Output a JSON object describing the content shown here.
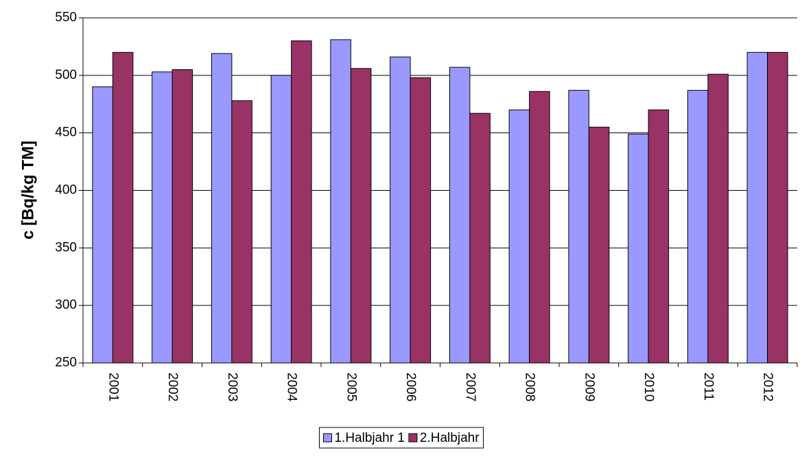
{
  "chart_data": {
    "type": "bar",
    "y_label": "c [Bq/kg TM]",
    "categories": [
      "2001",
      "2002",
      "2003",
      "2004",
      "2005",
      "2006",
      "2007",
      "2008",
      "2009",
      "2010",
      "2011",
      "2012"
    ],
    "series": [
      {
        "name": "1.Halbjahr 1",
        "color": "#9999ff",
        "values": [
          490,
          503,
          519,
          500,
          531,
          516,
          507,
          470,
          487,
          449,
          487,
          520
        ]
      },
      {
        "name": "2.Halbjahr",
        "color": "#993366",
        "values": [
          520,
          505,
          478,
          530,
          506,
          498,
          467,
          486,
          455,
          470,
          501,
          520
        ]
      }
    ],
    "ylim": [
      250,
      550
    ],
    "yticks": [
      250,
      300,
      350,
      400,
      450,
      500,
      550
    ],
    "grid": true,
    "legend": "bottom"
  }
}
